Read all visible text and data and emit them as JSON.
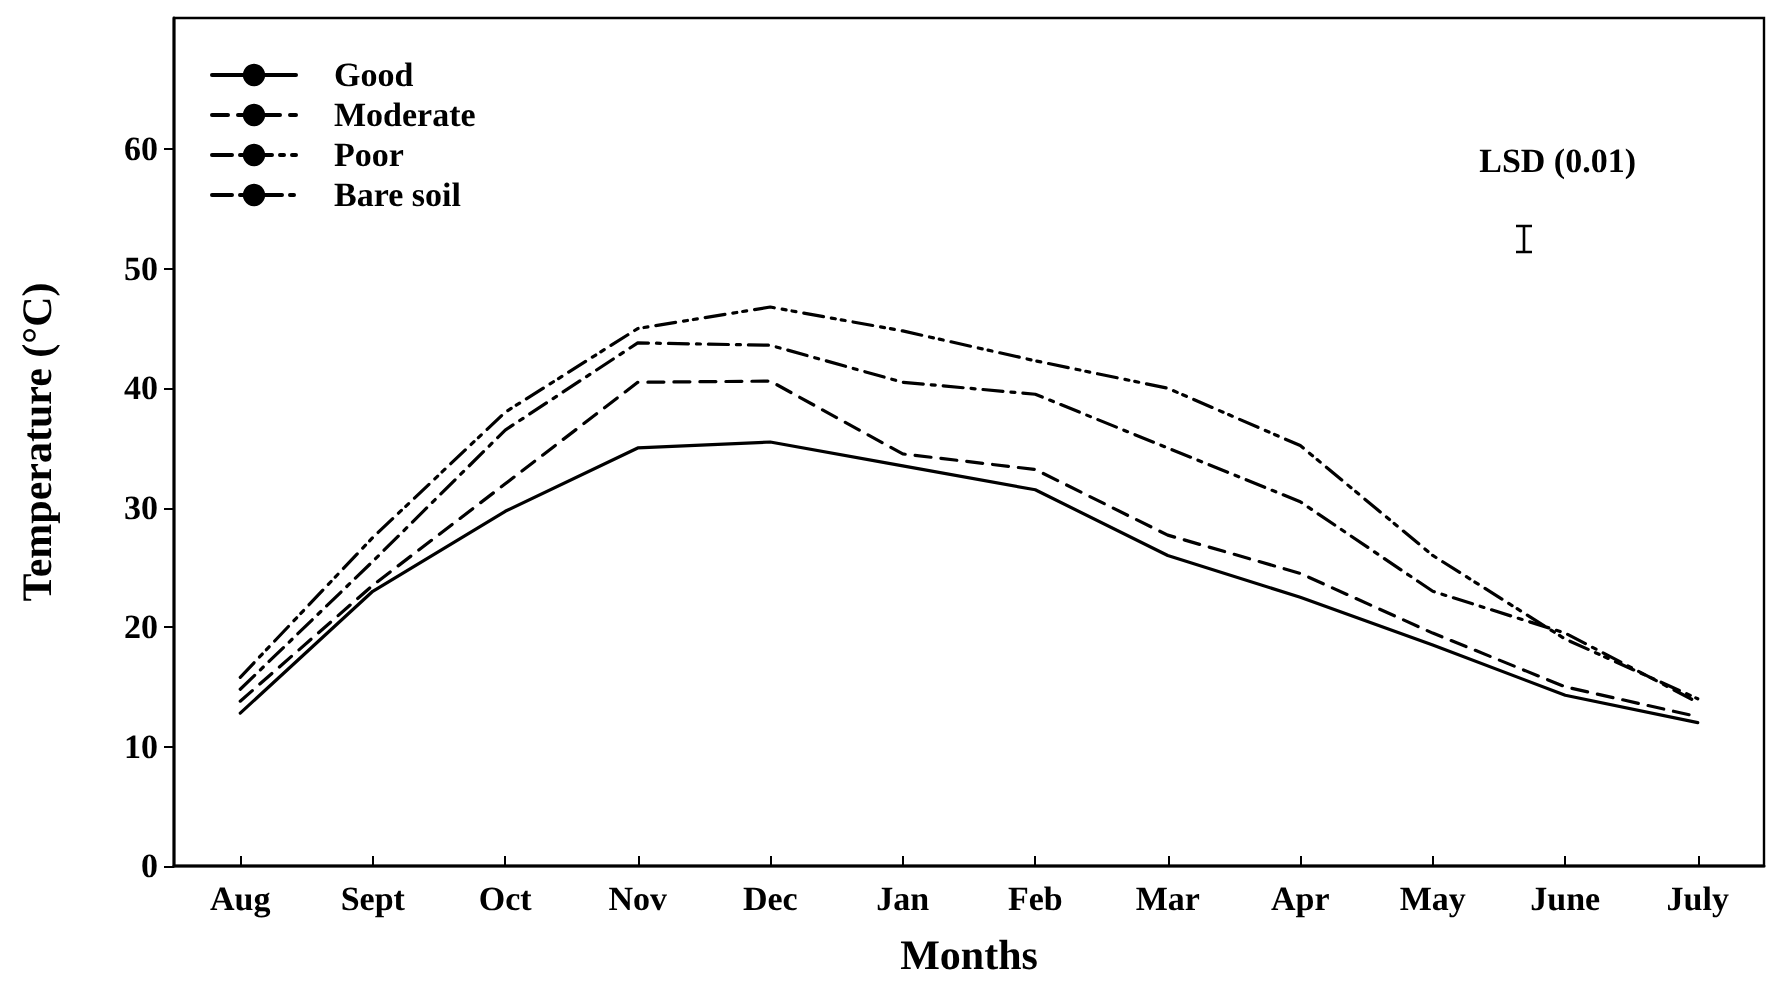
{
  "chart_data": {
    "type": "line",
    "xlabel": "Months",
    "ylabel": "Temperature (°C)",
    "categories": [
      "Aug",
      "Sept",
      "Oct",
      "Nov",
      "Dec",
      "Jan",
      "Feb",
      "Mar",
      "Apr",
      "May",
      "June",
      "July"
    ],
    "series": [
      {
        "name": "Good",
        "color": "#000000",
        "line_style": "solid",
        "values": [
          12.8,
          23,
          29.7,
          35,
          35.5,
          33.5,
          31.5,
          26,
          22.5,
          18.5,
          14.3,
          12
        ]
      },
      {
        "name": "Moderate",
        "color": "#000000",
        "line_style": "dashed",
        "values": [
          13.8,
          23.5,
          32,
          40.5,
          40.6,
          34.5,
          33.2,
          27.7,
          24.5,
          19.5,
          15,
          12.5
        ]
      },
      {
        "name": "Poor",
        "color": "#000000",
        "line_style": "dashdot",
        "values": [
          14.8,
          25.5,
          36.5,
          43.8,
          43.6,
          40.5,
          39.5,
          35,
          30.5,
          23,
          19.5,
          13.7
        ]
      },
      {
        "name": "Bare soil",
        "color": "#000000",
        "line_style": "dashdotdot",
        "values": [
          15.8,
          27.5,
          38,
          45,
          46.8,
          44.8,
          42.3,
          40,
          35.2,
          26,
          19,
          14
        ]
      }
    ],
    "ylim": [
      0,
      71
    ],
    "yticks": [
      0,
      10,
      20,
      30,
      40,
      50,
      60
    ],
    "annotations": [
      "LSD (0.01)"
    ],
    "grid": false,
    "legend": "top left",
    "marker": "none"
  }
}
